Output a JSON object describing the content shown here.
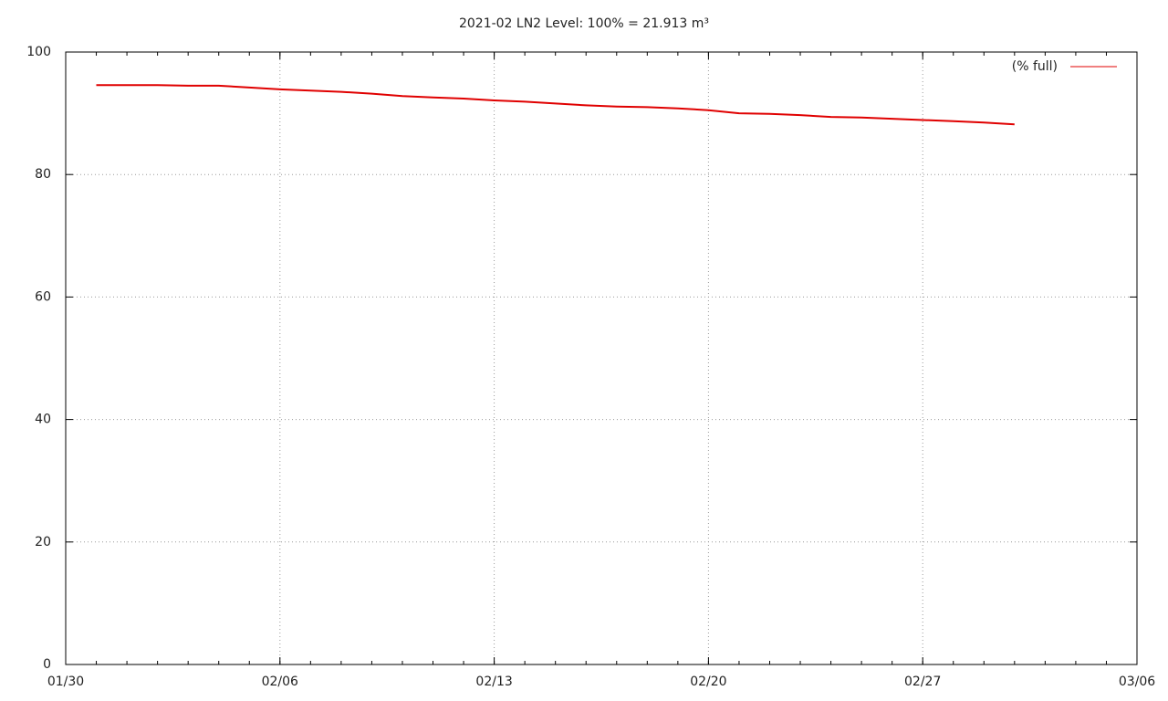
{
  "chart_data": {
    "type": "line",
    "title": "2021-02 LN2 Level: 100% = 21.913 m³",
    "x": [
      "01/31",
      "02/01",
      "02/02",
      "02/03",
      "02/04",
      "02/05",
      "02/06",
      "02/07",
      "02/08",
      "02/09",
      "02/10",
      "02/11",
      "02/12",
      "02/13",
      "02/14",
      "02/15",
      "02/16",
      "02/17",
      "02/18",
      "02/19",
      "02/20",
      "02/21",
      "02/22",
      "02/23",
      "02/24",
      "02/25",
      "02/26",
      "02/27",
      "02/28",
      "03/01",
      "03/02"
    ],
    "series": [
      {
        "name": "(% full)",
        "color": "#e00000",
        "values": [
          94.6,
          94.6,
          94.6,
          94.5,
          94.5,
          94.2,
          93.9,
          93.7,
          93.5,
          93.2,
          92.8,
          92.6,
          92.4,
          92.1,
          91.9,
          91.6,
          91.3,
          91.1,
          91.0,
          90.8,
          90.5,
          90.0,
          89.9,
          89.7,
          89.4,
          89.3,
          89.1,
          88.9,
          88.7,
          88.5,
          88.2
        ]
      }
    ],
    "xlim": [
      "01/30",
      "03/06"
    ],
    "xticks": [
      "01/30",
      "02/06",
      "02/13",
      "02/20",
      "02/27",
      "03/06"
    ],
    "ylim": [
      0,
      100
    ],
    "yticks": [
      0,
      20,
      40,
      60,
      80,
      100
    ],
    "grid": true,
    "legend": "top-right"
  }
}
